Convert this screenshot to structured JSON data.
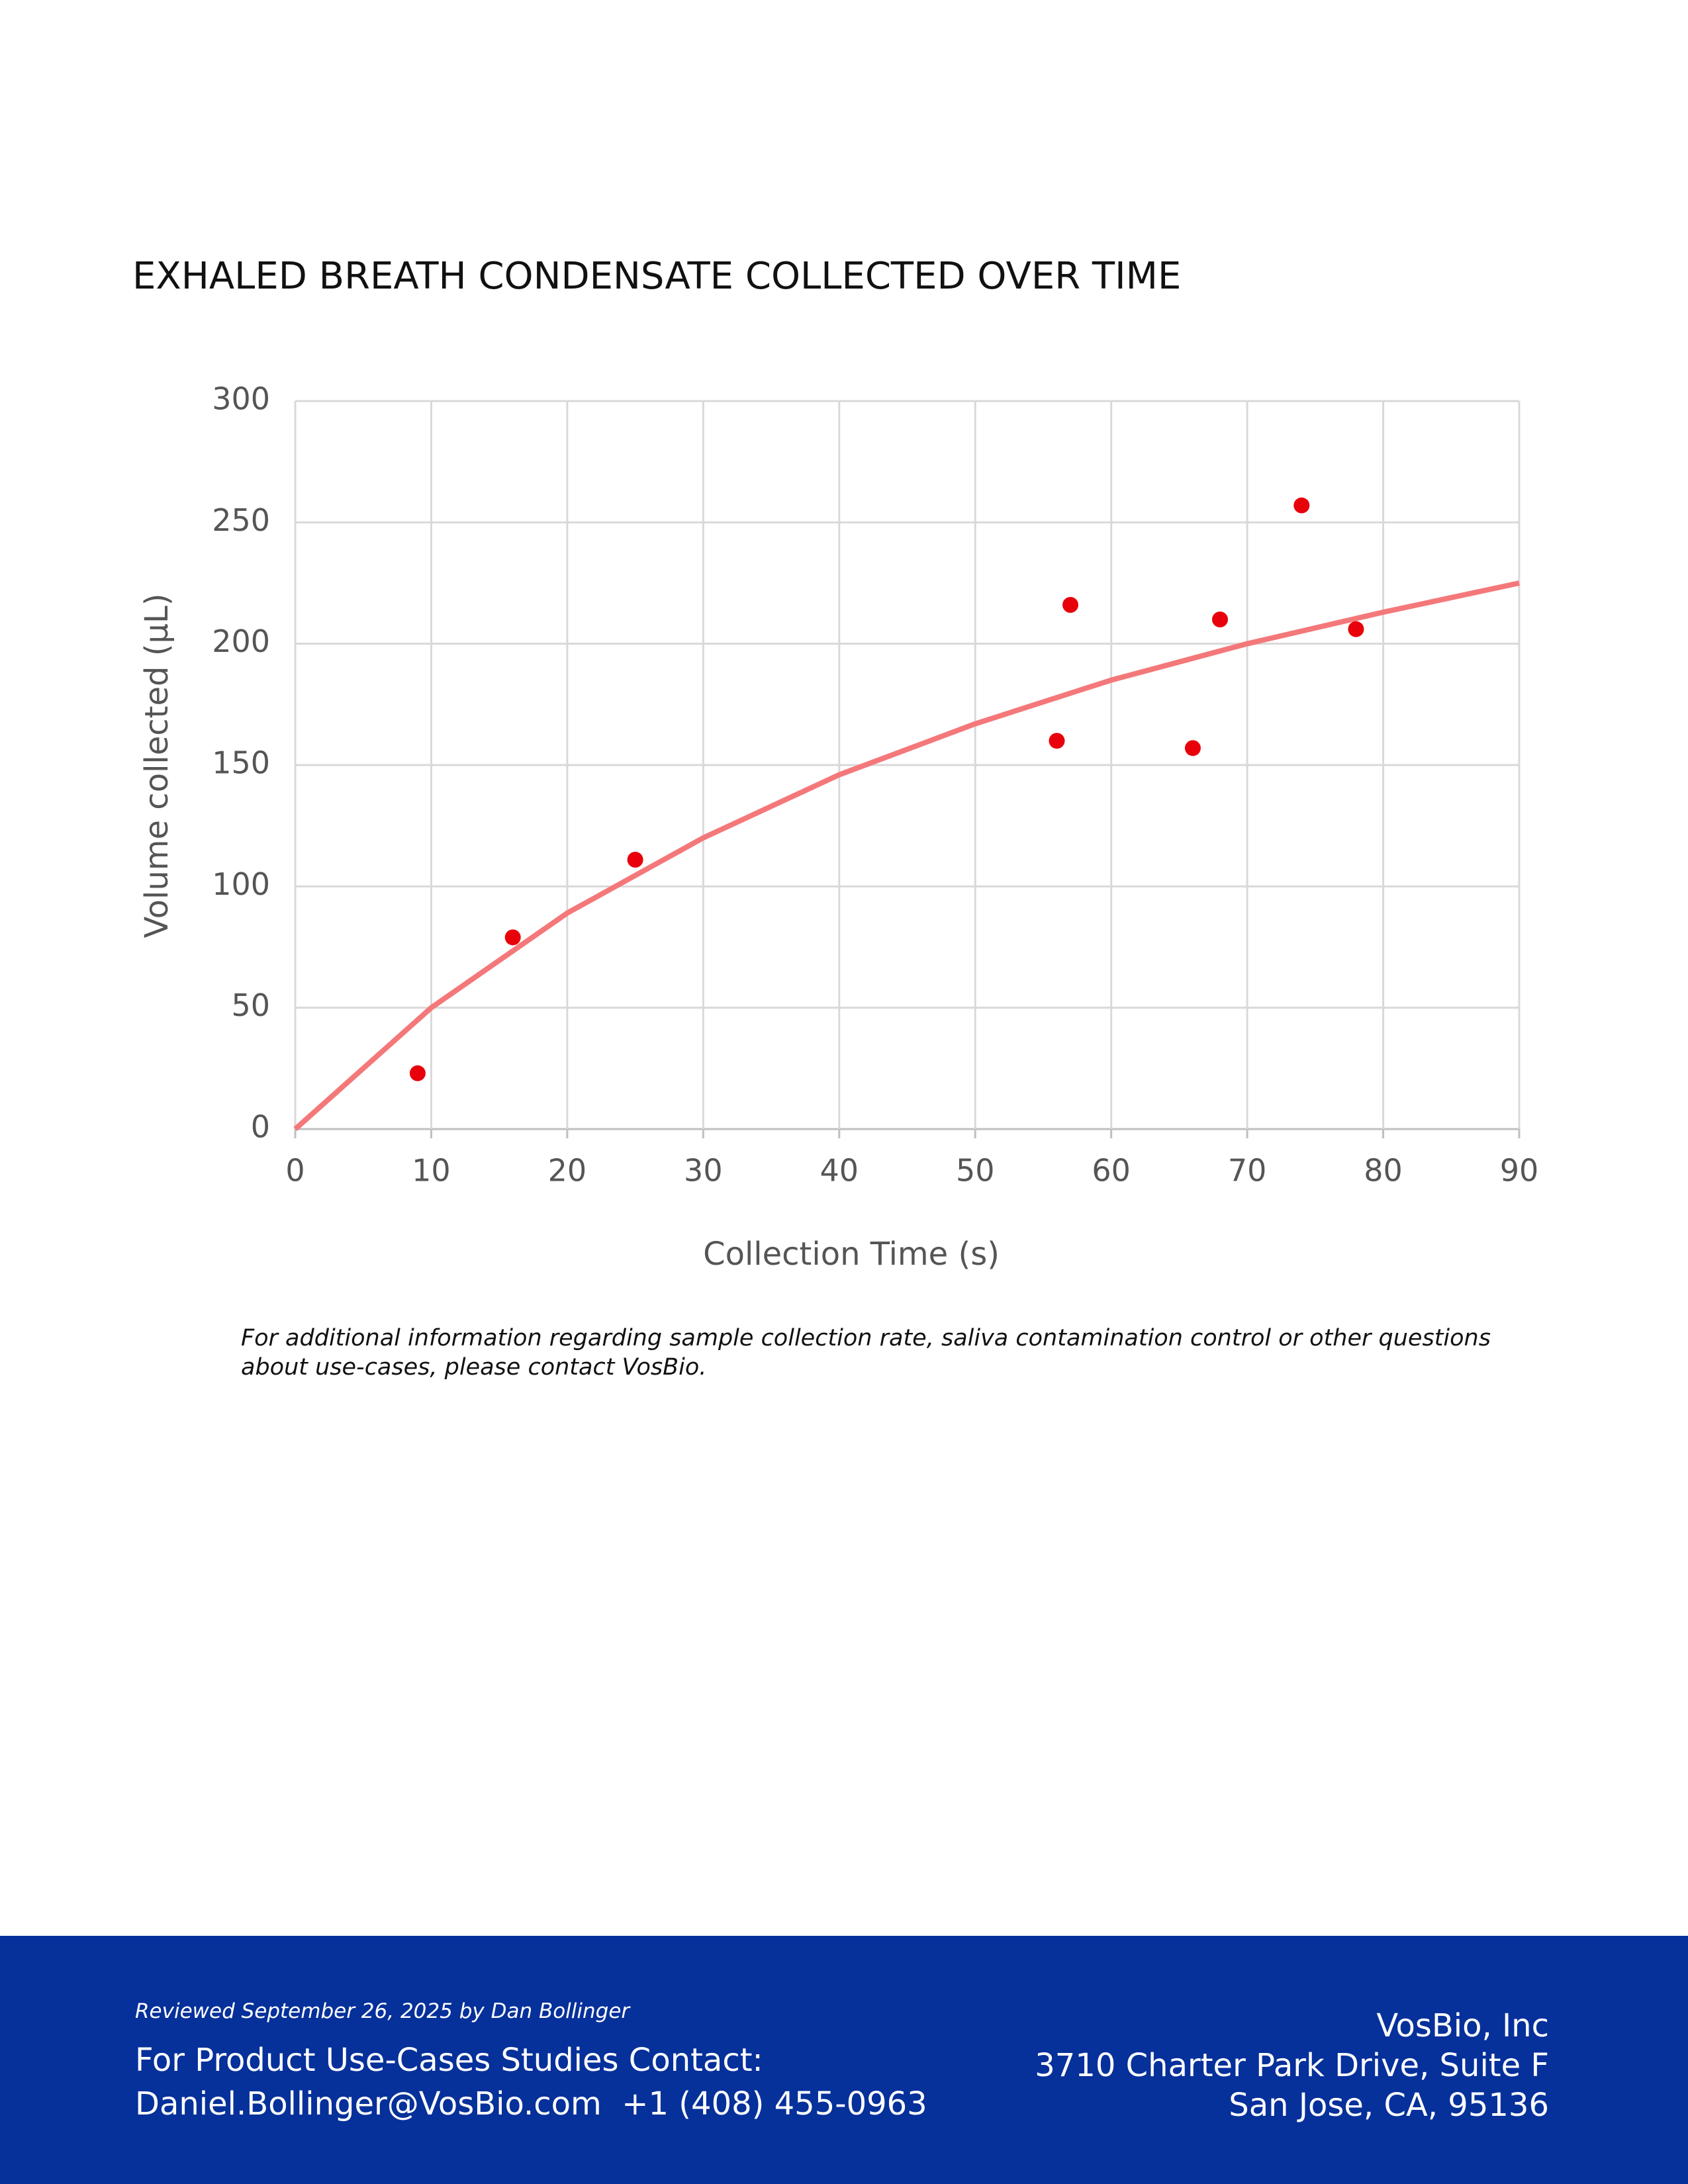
{
  "chart_data": {
    "type": "scatter",
    "title": "EXHALED BREATH CONDENSATE COLLECTED OVER TIME",
    "x_label": "Collection Time (s)",
    "y_label": "Volume collected (μL)",
    "xlim": [
      0,
      90
    ],
    "xticks": [
      0,
      10,
      20,
      30,
      40,
      50,
      60,
      70,
      80,
      90
    ],
    "ylim": [
      0,
      300
    ],
    "yticks": [
      0,
      50,
      100,
      150,
      200,
      250,
      300
    ],
    "grid": true,
    "series": [
      {
        "type": "scatter",
        "color": "#e8000b",
        "x": [
          9,
          16,
          25,
          56,
          57,
          66,
          68,
          74,
          78
        ],
        "values": [
          23,
          79,
          111,
          160,
          216,
          157,
          210,
          257,
          206
        ]
      },
      {
        "type": "line",
        "color": "#f4787a",
        "x": [
          0,
          10,
          20,
          30,
          40,
          50,
          60,
          70,
          80,
          90
        ],
        "values": [
          0,
          50,
          89,
          120,
          146,
          167,
          185,
          200,
          213,
          225
        ]
      }
    ]
  },
  "note": "For additional information regarding sample collection rate, saliva contamination control or other questions about use-cases, please contact VosBio.",
  "footer": {
    "reviewed": "Reviewed September 26, 2025 by Dan Bollinger",
    "contact_heading": "For Product Use-Cases Studies Contact:",
    "email": "Daniel.Bollinger@VosBio.com",
    "phone": "+1 (408) 455-0963",
    "company": "VosBio, Inc",
    "address_line1": "3710 Charter Park Drive, Suite F",
    "address_line2": "San Jose, CA, 95136"
  }
}
